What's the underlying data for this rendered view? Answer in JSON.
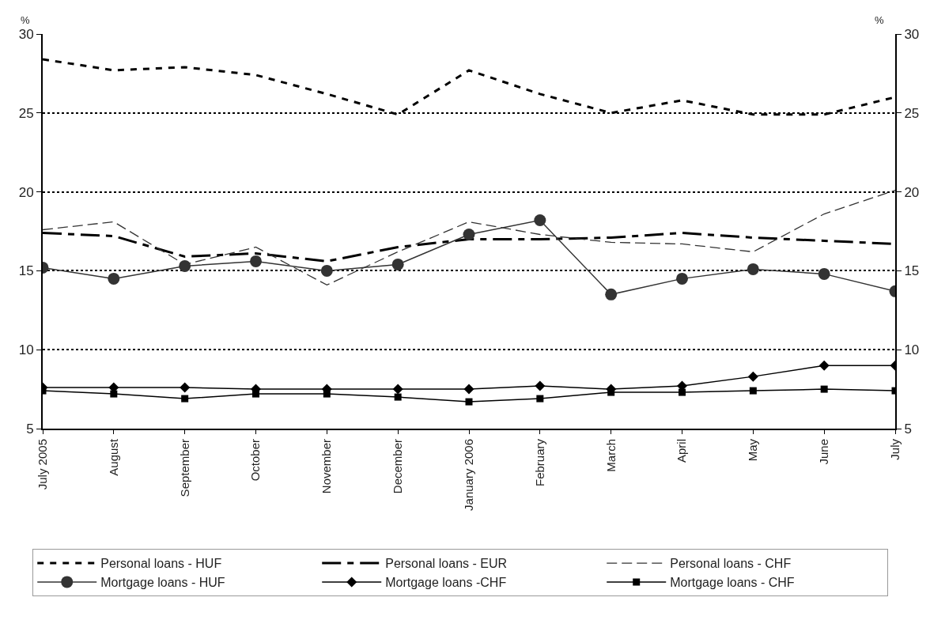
{
  "chart_data": {
    "type": "line",
    "ylabel": "%",
    "y2label": "%",
    "categories": [
      "July 2005",
      "August",
      "September",
      "October",
      "November",
      "December",
      "January 2006",
      "February",
      "March",
      "April",
      "May",
      "June",
      "July"
    ],
    "ylim": [
      5,
      30
    ],
    "yticks": [
      5,
      10,
      15,
      20,
      25,
      30
    ],
    "y2lim": [
      5,
      30
    ],
    "y2ticks": [
      5,
      10,
      15,
      20,
      25,
      30
    ],
    "grid": "y",
    "legend": "bottom",
    "series": [
      {
        "name": "Personal loans - HUF",
        "color": "#000000",
        "line_style": "dotted",
        "marker": "none",
        "values": [
          28.4,
          27.7,
          27.9,
          27.4,
          26.2,
          24.9,
          27.7,
          26.2,
          25.0,
          25.8,
          24.9,
          24.9,
          26.0
        ]
      },
      {
        "name": "Personal loans - EUR",
        "color": "#000000",
        "line_style": "dashdot",
        "marker": "none",
        "values": [
          17.4,
          17.2,
          15.9,
          16.1,
          15.6,
          16.5,
          17.0,
          17.0,
          17.1,
          17.4,
          17.1,
          16.9,
          16.7
        ]
      },
      {
        "name": "Personal loans - CHF",
        "color": "#333333",
        "line_style": "dashed",
        "marker": "none",
        "values": [
          17.6,
          18.1,
          15.4,
          16.5,
          14.1,
          16.2,
          18.1,
          17.3,
          16.8,
          16.7,
          16.2,
          18.6,
          20.1
        ]
      },
      {
        "name": "Mortgage loans - HUF",
        "color": "#333333",
        "line_style": "solid",
        "marker": "circle",
        "values": [
          15.2,
          14.5,
          15.3,
          15.6,
          15.0,
          15.4,
          17.3,
          18.2,
          13.5,
          14.5,
          15.1,
          14.8,
          13.7
        ]
      },
      {
        "name": "Mortgage loans -CHF",
        "color": "#000000",
        "line_style": "solid",
        "marker": "diamond",
        "values": [
          7.6,
          7.6,
          7.6,
          7.5,
          7.5,
          7.5,
          7.5,
          7.7,
          7.5,
          7.7,
          8.3,
          9.0,
          9.0
        ]
      },
      {
        "name": "Mortgage loans - CHF",
        "color": "#000000",
        "line_style": "solid",
        "marker": "square",
        "values": [
          7.4,
          7.2,
          6.9,
          7.2,
          7.2,
          7.0,
          6.7,
          6.9,
          7.3,
          7.3,
          7.4,
          7.5,
          7.4
        ]
      }
    ]
  }
}
